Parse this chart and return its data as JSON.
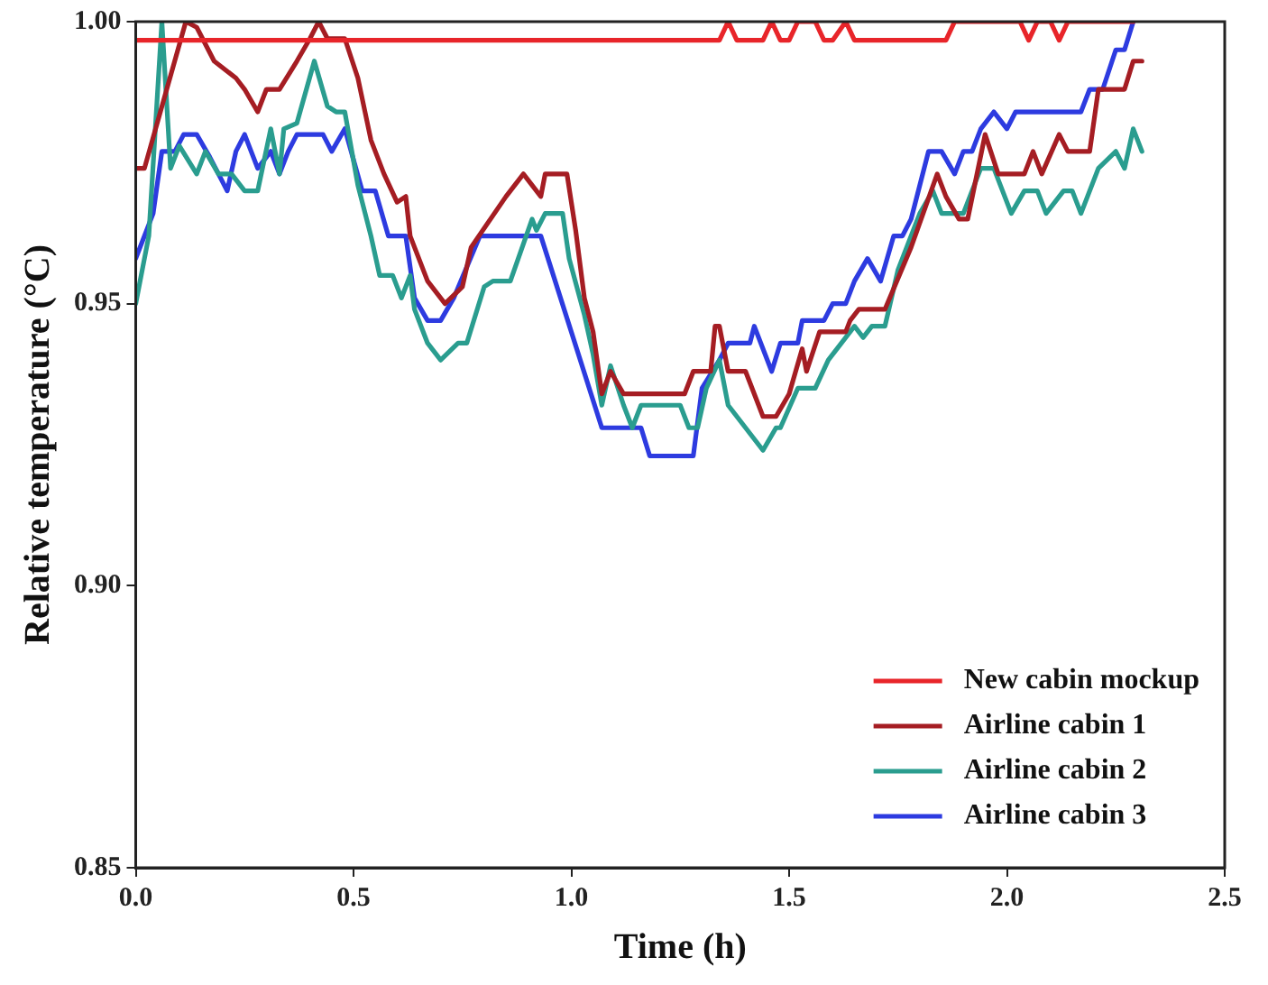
{
  "chart_data": {
    "type": "line",
    "xlabel": "Time (h)",
    "ylabel": "Relative temperature (°C)",
    "xlim": [
      0,
      2.5
    ],
    "xticks": [
      {
        "value": 0,
        "label": "0.0"
      },
      {
        "value": 0.5,
        "label": "0.5"
      },
      {
        "value": 1,
        "label": "1.0"
      },
      {
        "value": 1.5,
        "label": "1.5"
      },
      {
        "value": 2,
        "label": "2.0"
      },
      {
        "value": 2.5,
        "label": "2.5"
      }
    ],
    "ylim": [
      0.85,
      1
    ],
    "yticks": [
      {
        "value": 0.85,
        "label": "0.85"
      },
      {
        "value": 0.9,
        "label": "0.90"
      },
      {
        "value": 0.95,
        "label": "0.95"
      },
      {
        "value": 1,
        "label": "1.00"
      }
    ],
    "grid": false,
    "legend": "bottom right",
    "marker": "none",
    "line_style": "solid",
    "series": [
      {
        "name": "New cabin mockup",
        "color": "#e8252a",
        "x": [
          0,
          1.34,
          1.36,
          1.38,
          1.44,
          1.46,
          1.48,
          1.5,
          1.52,
          1.56,
          1.58,
          1.6,
          1.63,
          1.65,
          1.66,
          1.86,
          1.88,
          2.03,
          2.05,
          2.07,
          2.1,
          2.12,
          2.14,
          2.29
        ],
        "values": [
          0.9967,
          0.9967,
          1,
          0.9967,
          0.9967,
          1,
          0.9967,
          0.9967,
          1,
          1,
          0.9967,
          0.9967,
          1,
          0.9967,
          0.9967,
          0.9967,
          1,
          1,
          0.9967,
          1,
          1,
          0.9967,
          1,
          1
        ]
      },
      {
        "name": "Airline cabin 1",
        "color": "#a51d23",
        "x": [
          0,
          0.02,
          0.115,
          0.14,
          0.18,
          0.23,
          0.25,
          0.28,
          0.3,
          0.33,
          0.37,
          0.4,
          0.42,
          0.44,
          0.48,
          0.51,
          0.54,
          0.57,
          0.6,
          0.62,
          0.63,
          0.67,
          0.71,
          0.75,
          0.77,
          0.85,
          0.89,
          0.93,
          0.94,
          0.99,
          1.01,
          1.03,
          1.05,
          1.07,
          1.09,
          1.12,
          1.26,
          1.28,
          1.32,
          1.33,
          1.34,
          1.36,
          1.4,
          1.44,
          1.47,
          1.5,
          1.53,
          1.54,
          1.57,
          1.63,
          1.64,
          1.66,
          1.68,
          1.72,
          1.78,
          1.84,
          1.86,
          1.89,
          1.91,
          1.95,
          1.98,
          2.04,
          2.06,
          2.08,
          2.12,
          2.14,
          2.19,
          2.21,
          2.27,
          2.29,
          2.31
        ],
        "values": [
          0.974,
          0.974,
          1,
          0.999,
          0.993,
          0.99,
          0.988,
          0.984,
          0.988,
          0.988,
          0.993,
          0.997,
          1,
          0.997,
          0.997,
          0.99,
          0.979,
          0.973,
          0.968,
          0.969,
          0.962,
          0.954,
          0.95,
          0.953,
          0.96,
          0.969,
          0.973,
          0.969,
          0.973,
          0.973,
          0.963,
          0.951,
          0.945,
          0.934,
          0.938,
          0.934,
          0.934,
          0.938,
          0.938,
          0.946,
          0.946,
          0.938,
          0.938,
          0.93,
          0.93,
          0.934,
          0.942,
          0.938,
          0.945,
          0.945,
          0.947,
          0.949,
          0.949,
          0.949,
          0.96,
          0.973,
          0.969,
          0.965,
          0.965,
          0.98,
          0.973,
          0.973,
          0.977,
          0.973,
          0.98,
          0.977,
          0.977,
          0.988,
          0.988,
          0.993,
          0.993
        ]
      },
      {
        "name": "Airline cabin 2",
        "color": "#2a9d8f",
        "x": [
          0,
          0.03,
          0.06,
          0.08,
          0.1,
          0.14,
          0.16,
          0.19,
          0.22,
          0.25,
          0.28,
          0.31,
          0.33,
          0.34,
          0.37,
          0.41,
          0.44,
          0.46,
          0.48,
          0.51,
          0.54,
          0.56,
          0.59,
          0.61,
          0.63,
          0.64,
          0.67,
          0.7,
          0.74,
          0.76,
          0.8,
          0.82,
          0.86,
          0.91,
          0.92,
          0.94,
          0.98,
          0.995,
          1.03,
          1.05,
          1.07,
          1.09,
          1.12,
          1.14,
          1.16,
          1.25,
          1.27,
          1.29,
          1.31,
          1.34,
          1.36,
          1.4,
          1.44,
          1.47,
          1.48,
          1.52,
          1.56,
          1.59,
          1.63,
          1.65,
          1.67,
          1.69,
          1.72,
          1.75,
          1.8,
          1.83,
          1.85,
          1.9,
          1.94,
          1.97,
          2.01,
          2.04,
          2.07,
          2.09,
          2.13,
          2.15,
          2.17,
          2.21,
          2.25,
          2.27,
          2.29,
          2.31
        ],
        "values": [
          0.95,
          0.962,
          1,
          0.974,
          0.978,
          0.973,
          0.977,
          0.973,
          0.973,
          0.97,
          0.97,
          0.981,
          0.973,
          0.981,
          0.982,
          0.993,
          0.985,
          0.984,
          0.984,
          0.971,
          0.962,
          0.955,
          0.955,
          0.951,
          0.955,
          0.949,
          0.943,
          0.94,
          0.943,
          0.943,
          0.953,
          0.954,
          0.954,
          0.965,
          0.963,
          0.966,
          0.966,
          0.958,
          0.948,
          0.941,
          0.932,
          0.939,
          0.932,
          0.928,
          0.932,
          0.932,
          0.928,
          0.928,
          0.935,
          0.94,
          0.932,
          0.928,
          0.924,
          0.928,
          0.928,
          0.935,
          0.935,
          0.94,
          0.944,
          0.946,
          0.944,
          0.946,
          0.946,
          0.956,
          0.966,
          0.97,
          0.966,
          0.966,
          0.974,
          0.974,
          0.966,
          0.97,
          0.97,
          0.966,
          0.97,
          0.97,
          0.966,
          0.974,
          0.977,
          0.974,
          0.981,
          0.977
        ]
      },
      {
        "name": "Airline cabin 3",
        "color": "#2d3be0",
        "x": [
          0,
          0.04,
          0.06,
          0.09,
          0.11,
          0.14,
          0.17,
          0.19,
          0.21,
          0.23,
          0.25,
          0.28,
          0.31,
          0.33,
          0.35,
          0.37,
          0.43,
          0.45,
          0.48,
          0.52,
          0.55,
          0.58,
          0.62,
          0.64,
          0.67,
          0.7,
          0.73,
          0.79,
          0.93,
          1.07,
          1.16,
          1.18,
          1.28,
          1.3,
          1.34,
          1.36,
          1.41,
          1.42,
          1.46,
          1.48,
          1.52,
          1.53,
          1.58,
          1.6,
          1.63,
          1.65,
          1.68,
          1.71,
          1.74,
          1.76,
          1.78,
          1.82,
          1.85,
          1.88,
          1.9,
          1.92,
          1.94,
          1.97,
          2,
          2.02,
          2.17,
          2.19,
          2.22,
          2.25,
          2.27,
          2.29
        ],
        "values": [
          0.958,
          0.966,
          0.977,
          0.977,
          0.98,
          0.98,
          0.976,
          0.973,
          0.97,
          0.977,
          0.98,
          0.974,
          0.977,
          0.973,
          0.977,
          0.98,
          0.98,
          0.977,
          0.981,
          0.97,
          0.97,
          0.962,
          0.962,
          0.951,
          0.947,
          0.947,
          0.951,
          0.962,
          0.962,
          0.928,
          0.928,
          0.923,
          0.923,
          0.935,
          0.94,
          0.943,
          0.943,
          0.946,
          0.938,
          0.943,
          0.943,
          0.947,
          0.947,
          0.95,
          0.95,
          0.954,
          0.958,
          0.954,
          0.962,
          0.962,
          0.965,
          0.977,
          0.977,
          0.973,
          0.977,
          0.977,
          0.981,
          0.984,
          0.981,
          0.984,
          0.984,
          0.988,
          0.988,
          0.995,
          0.995,
          1
        ]
      }
    ]
  }
}
